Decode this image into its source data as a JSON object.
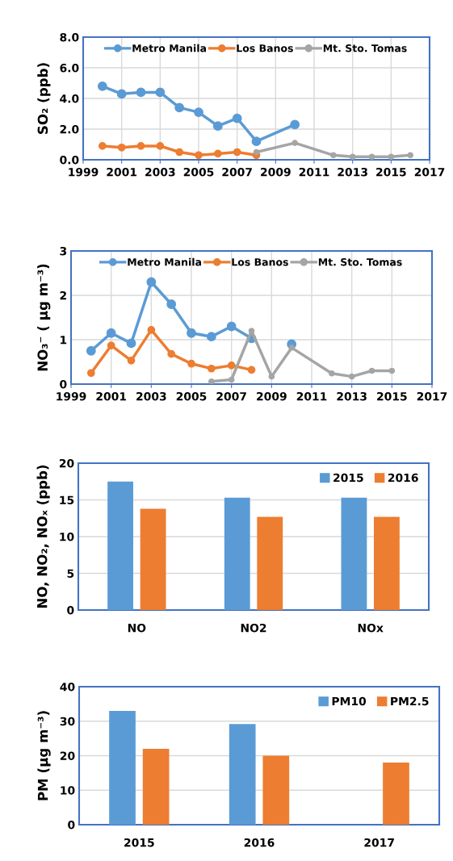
{
  "chart_data": [
    {
      "type": "line",
      "ylabel": "SO₂ (ppb)",
      "xlim": [
        1999,
        2017
      ],
      "xticks": [
        1999,
        2001,
        2003,
        2005,
        2007,
        2009,
        2011,
        2013,
        2015,
        2017
      ],
      "ylim": [
        0,
        8
      ],
      "yticks": [
        {
          "value": 0,
          "label": "0.0"
        },
        {
          "value": 2,
          "label": "2.0"
        },
        {
          "value": 4,
          "label": "4.0"
        },
        {
          "value": 6,
          "label": "6.0"
        },
        {
          "value": 8,
          "label": "8.0"
        }
      ],
      "grid": true,
      "legend": "top",
      "marker": "circle",
      "line_style": "solid",
      "series": [
        {
          "name": "Metro Manila",
          "color": "#5b9bd5",
          "x": [
            2000,
            2001,
            2002,
            2003,
            2004,
            2005,
            2006,
            2007,
            2008,
            2010
          ],
          "values": [
            4.8,
            4.3,
            4.4,
            4.4,
            3.4,
            3.1,
            2.2,
            2.7,
            1.2,
            2.3
          ]
        },
        {
          "name": "Los Banos",
          "color": "#ed7d31",
          "x": [
            2000,
            2001,
            2002,
            2003,
            2004,
            2005,
            2006,
            2007,
            2008
          ],
          "values": [
            0.9,
            0.8,
            0.9,
            0.9,
            0.5,
            0.3,
            0.4,
            0.5,
            0.3
          ]
        },
        {
          "name": "Mt. Sto. Tomas",
          "color": "#a5a5a5",
          "x": [
            2008,
            2010,
            2012,
            2013,
            2014,
            2015,
            2016
          ],
          "values": [
            0.5,
            1.1,
            0.3,
            0.2,
            0.2,
            0.2,
            0.3
          ]
        }
      ]
    },
    {
      "type": "line",
      "ylabel": "NO₃⁻ ( µg m⁻³)",
      "xlim": [
        1999,
        2017
      ],
      "xticks": [
        1999,
        2001,
        2003,
        2005,
        2007,
        2009,
        2011,
        2013,
        2015,
        2017
      ],
      "ylim": [
        0,
        3
      ],
      "yticks": [
        0,
        1,
        2,
        3
      ],
      "grid": true,
      "legend": "top",
      "marker": "circle",
      "line_style": "solid",
      "series": [
        {
          "name": "Metro Manila",
          "color": "#5b9bd5",
          "x": [
            2000,
            2001,
            2002,
            2003,
            2004,
            2005,
            2006,
            2007,
            2008,
            2009,
            2010
          ],
          "values": [
            0.75,
            1.15,
            0.92,
            2.3,
            1.8,
            1.15,
            1.07,
            1.3,
            1.03,
            null,
            0.9
          ]
        },
        {
          "name": "Los Banos",
          "color": "#ed7d31",
          "x": [
            2000,
            2001,
            2002,
            2003,
            2004,
            2005,
            2006,
            2007,
            2008
          ],
          "values": [
            0.25,
            0.87,
            0.53,
            1.22,
            0.68,
            0.46,
            0.35,
            0.42,
            0.32
          ]
        },
        {
          "name": "Mt. Sto. Tomas",
          "color": "#a5a5a5",
          "x": [
            2006,
            2007,
            2008,
            2009,
            2010,
            2012,
            2013,
            2014,
            2015
          ],
          "values": [
            0.06,
            0.1,
            1.2,
            0.17,
            0.82,
            0.24,
            0.17,
            0.3,
            0.3
          ]
        }
      ]
    },
    {
      "type": "bar",
      "ylabel": "NO, NO₂, NOₓ (ppb)",
      "categories": [
        "NO",
        "NO2",
        "NOx"
      ],
      "ylim": [
        0,
        20
      ],
      "yticks": [
        0,
        5,
        10,
        15,
        20
      ],
      "grid": "y",
      "legend": "top right",
      "series": [
        {
          "name": "2015",
          "color": "#5b9bd5",
          "values": [
            17.5,
            15.3,
            15.3
          ]
        },
        {
          "name": "2016",
          "color": "#ed7d31",
          "values": [
            13.8,
            12.7,
            12.7
          ]
        }
      ]
    },
    {
      "type": "bar",
      "ylabel": "PM (µg m⁻³)",
      "categories": [
        "2015",
        "2016",
        "2017"
      ],
      "ylim": [
        0,
        40
      ],
      "yticks": [
        0,
        10,
        20,
        30,
        40
      ],
      "grid": "y",
      "legend": "top right",
      "series": [
        {
          "name": "PM10",
          "color": "#5b9bd5",
          "values": [
            33,
            29.2,
            null
          ]
        },
        {
          "name": "PM2.5",
          "color": "#ed7d31",
          "values": [
            22,
            20,
            18
          ]
        }
      ]
    }
  ]
}
